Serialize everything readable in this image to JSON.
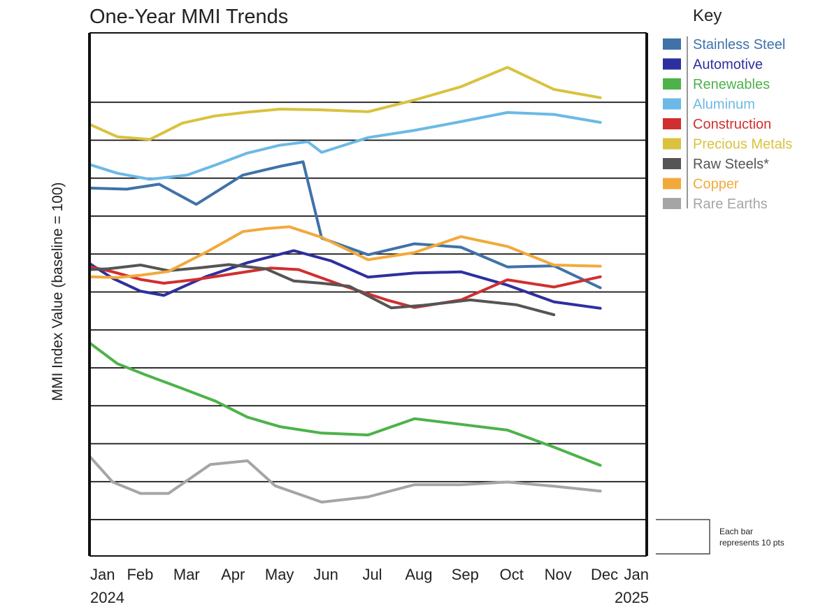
{
  "chart_data": {
    "type": "line",
    "title": "One-Year MMI Trends",
    "ylabel": "MMI Index Value (baseline = 100)",
    "xlabel": "",
    "x": [
      "Jan 2024",
      "Feb",
      "Mar",
      "Apr",
      "May",
      "Jun",
      "Jul",
      "Aug",
      "Sep",
      "Oct",
      "Nov",
      "Dec",
      "Jan 2025"
    ],
    "x_ticks": [
      {
        "label": "Jan",
        "sub": "2024"
      },
      {
        "label": "Feb",
        "sub": ""
      },
      {
        "label": "Mar",
        "sub": ""
      },
      {
        "label": "Apr",
        "sub": ""
      },
      {
        "label": "May",
        "sub": ""
      },
      {
        "label": "Jun",
        "sub": ""
      },
      {
        "label": "Jul",
        "sub": ""
      },
      {
        "label": "Aug",
        "sub": ""
      },
      {
        "label": "Sep",
        "sub": ""
      },
      {
        "label": "Oct",
        "sub": ""
      },
      {
        "label": "Nov",
        "sub": ""
      },
      {
        "label": "Dec",
        "sub": ""
      },
      {
        "label": "Jan",
        "sub": "2025"
      }
    ],
    "grid_step_pts": 10,
    "grid": true,
    "legend_title": "Key",
    "legend_position": "right",
    "scale_note": "Each bar represents 10 pts",
    "series": [
      {
        "name": "Stainless Steel",
        "color": "#3f72a8",
        "points": [
          [
            0,
            97.4
          ],
          [
            0.8,
            97.1
          ],
          [
            1.5,
            98.4
          ],
          [
            2.3,
            93.1
          ],
          [
            3.3,
            100.8
          ],
          [
            4.1,
            103.1
          ],
          [
            4.6,
            104.3
          ],
          [
            5,
            84.2
          ],
          [
            6,
            79.8
          ],
          [
            7,
            82.7
          ],
          [
            8,
            81.8
          ],
          [
            9,
            76.6
          ],
          [
            10,
            76.9
          ],
          [
            11,
            71.1
          ]
        ]
      },
      {
        "name": "Automotive",
        "color": "#2e2f9e",
        "points": [
          [
            0,
            77.5
          ],
          [
            0.5,
            73.6
          ],
          [
            1.1,
            70.2
          ],
          [
            1.6,
            69.1
          ],
          [
            2.5,
            74.0
          ],
          [
            3.4,
            77.7
          ],
          [
            4.4,
            80.9
          ],
          [
            5.2,
            78.2
          ],
          [
            6,
            73.9
          ],
          [
            7,
            75.0
          ],
          [
            8,
            75.3
          ],
          [
            9,
            71.8
          ],
          [
            10,
            67.4
          ],
          [
            11,
            65.7
          ]
        ]
      },
      {
        "name": "Renewables",
        "color": "#4db24a",
        "points": [
          [
            0,
            56.6
          ],
          [
            0.6,
            51.1
          ],
          [
            1.2,
            48.2
          ],
          [
            1.9,
            45.0
          ],
          [
            2.7,
            41.3
          ],
          [
            3.4,
            37.0
          ],
          [
            4.1,
            34.5
          ],
          [
            5,
            32.8
          ],
          [
            6,
            32.3
          ],
          [
            7,
            36.6
          ],
          [
            8,
            35.1
          ],
          [
            9,
            33.6
          ],
          [
            10,
            29.1
          ],
          [
            11,
            24.3
          ]
        ]
      },
      {
        "name": "Aluminum",
        "color": "#6cb9e6",
        "points": [
          [
            0,
            103.6
          ],
          [
            0.6,
            101.3
          ],
          [
            1.3,
            99.7
          ],
          [
            2.1,
            100.8
          ],
          [
            2.7,
            103.4
          ],
          [
            3.4,
            106.6
          ],
          [
            4.1,
            108.7
          ],
          [
            4.7,
            109.6
          ],
          [
            5,
            106.8
          ],
          [
            6,
            110.7
          ],
          [
            7,
            112.6
          ],
          [
            8,
            114.9
          ],
          [
            9,
            117.3
          ],
          [
            10,
            116.8
          ],
          [
            11,
            114.7
          ]
        ]
      },
      {
        "name": "Construction",
        "color": "#d12f2f",
        "points": [
          [
            0,
            76.7
          ],
          [
            0.5,
            75.3
          ],
          [
            1.1,
            73.3
          ],
          [
            1.6,
            72.3
          ],
          [
            2.3,
            73.3
          ],
          [
            3,
            74.6
          ],
          [
            3.9,
            76.3
          ],
          [
            4.5,
            75.9
          ],
          [
            5.5,
            71.5
          ],
          [
            6.4,
            67.9
          ],
          [
            7,
            65.9
          ],
          [
            8,
            67.9
          ],
          [
            9,
            73.2
          ],
          [
            10,
            71.3
          ],
          [
            11,
            74.0
          ]
        ]
      },
      {
        "name": "Precious Metals",
        "color": "#d9c23e",
        "points": [
          [
            0,
            114.2
          ],
          [
            0.6,
            110.9
          ],
          [
            1.3,
            110.2
          ],
          [
            2,
            114.5
          ],
          [
            2.7,
            116.4
          ],
          [
            3.4,
            117.4
          ],
          [
            4.1,
            118.2
          ],
          [
            5,
            118.0
          ],
          [
            6,
            117.5
          ],
          [
            7,
            120.6
          ],
          [
            8,
            124.1
          ],
          [
            9,
            129.2
          ],
          [
            10,
            123.4
          ],
          [
            11,
            121.2
          ]
        ]
      },
      {
        "name": "Raw Steels*",
        "color": "#555555",
        "points": [
          [
            0,
            75.9
          ],
          [
            0.4,
            76.1
          ],
          [
            1.1,
            77.1
          ],
          [
            1.7,
            75.6
          ],
          [
            2.4,
            76.4
          ],
          [
            3,
            77.2
          ],
          [
            3.8,
            76.1
          ],
          [
            4.4,
            72.9
          ],
          [
            5,
            72.3
          ],
          [
            5.6,
            71.5
          ],
          [
            6.5,
            65.8
          ],
          [
            7.2,
            66.5
          ],
          [
            8.2,
            67.9
          ],
          [
            9.2,
            66.6
          ],
          [
            10,
            64.0
          ]
        ]
      },
      {
        "name": "Copper",
        "color": "#f2a93b",
        "points": [
          [
            0,
            74.0
          ],
          [
            0.6,
            73.8
          ],
          [
            1.1,
            74.4
          ],
          [
            1.7,
            75.4
          ],
          [
            2.5,
            80.4
          ],
          [
            3.3,
            85.9
          ],
          [
            3.8,
            86.7
          ],
          [
            4.3,
            87.2
          ],
          [
            5,
            84.4
          ],
          [
            6,
            78.5
          ],
          [
            7,
            80.4
          ],
          [
            8,
            84.6
          ],
          [
            9,
            82.0
          ],
          [
            10,
            77.1
          ],
          [
            11,
            76.8
          ]
        ]
      },
      {
        "name": "Rare Earths",
        "color": "#a5a5a5",
        "points": [
          [
            0,
            26.7
          ],
          [
            0.5,
            19.9
          ],
          [
            1.1,
            16.9
          ],
          [
            1.7,
            16.9
          ],
          [
            2.6,
            24.5
          ],
          [
            3.4,
            25.5
          ],
          [
            4,
            18.9
          ],
          [
            5,
            14.6
          ],
          [
            6,
            16.0
          ],
          [
            7,
            19.2
          ],
          [
            8,
            19.2
          ],
          [
            9,
            19.9
          ],
          [
            10,
            18.8
          ],
          [
            11,
            17.5
          ]
        ]
      }
    ]
  }
}
